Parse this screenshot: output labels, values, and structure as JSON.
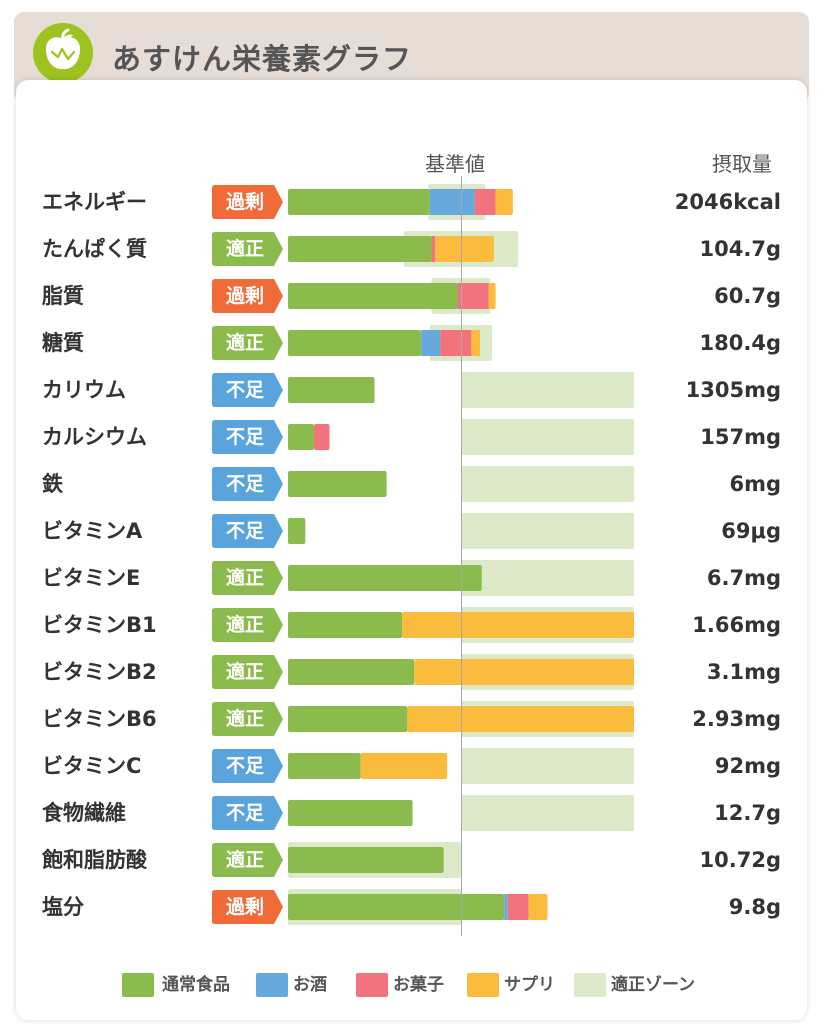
{
  "header": {
    "title": "あすけん栄養素グラフ",
    "logo_icon": "apple-icon"
  },
  "chart_data": {
    "type": "bar",
    "subtype": "stacked-horizontal-with-target-zones",
    "reference_label": "基準値",
    "intake_header": "摂取量",
    "axis": {
      "min": 0,
      "max": 200,
      "reference": 100,
      "unit": "% of standard"
    },
    "colors": {
      "food": "#8bbb4d",
      "alcohol": "#67a9dc",
      "snack": "#f2737e",
      "supplement": "#fbbb3c",
      "zone": "#dceac9",
      "excess": "#f06b37",
      "ok": "#8bbb4d",
      "deficient": "#5aa4de"
    },
    "status_labels": {
      "excess": "過剰",
      "ok": "適正",
      "deficient": "不足"
    },
    "legend": [
      {
        "key": "food",
        "label": "通常食品"
      },
      {
        "key": "alcohol",
        "label": "お酒"
      },
      {
        "key": "snack",
        "label": "お菓子"
      },
      {
        "key": "supplement",
        "label": "サプリ"
      },
      {
        "key": "zone",
        "label": "適正ゾーン"
      }
    ],
    "rows": [
      {
        "name": "エネルギー",
        "status": "excess",
        "value": "2046kcal",
        "zone": [
          81,
          114
        ],
        "segments": [
          [
            "food",
            82
          ],
          [
            "alcohol",
            26
          ],
          [
            "snack",
            12
          ],
          [
            "supplement",
            10
          ]
        ]
      },
      {
        "name": "たんぱく質",
        "status": "ok",
        "value": "104.7g",
        "zone": [
          67,
          133
        ],
        "segments": [
          [
            "food",
            83
          ],
          [
            "snack",
            2
          ],
          [
            "supplement",
            34
          ]
        ]
      },
      {
        "name": "脂質",
        "status": "excess",
        "value": "60.7g",
        "zone": [
          83,
          117
        ],
        "segments": [
          [
            "food",
            98
          ],
          [
            "snack",
            18
          ],
          [
            "supplement",
            4
          ]
        ]
      },
      {
        "name": "糖質",
        "status": "ok",
        "value": "180.4g",
        "zone": [
          82,
          118
        ],
        "segments": [
          [
            "food",
            77
          ],
          [
            "alcohol",
            11
          ],
          [
            "snack",
            18
          ],
          [
            "supplement",
            5
          ]
        ]
      },
      {
        "name": "カリウム",
        "status": "deficient",
        "value": "1305mg",
        "zone": [
          100,
          200
        ],
        "segments": [
          [
            "food",
            50
          ]
        ]
      },
      {
        "name": "カルシウム",
        "status": "deficient",
        "value": "157mg",
        "zone": [
          100,
          200
        ],
        "segments": [
          [
            "food",
            15
          ],
          [
            "snack",
            9
          ]
        ]
      },
      {
        "name": "鉄",
        "status": "deficient",
        "value": "6mg",
        "zone": [
          100,
          200
        ],
        "segments": [
          [
            "food",
            57
          ]
        ]
      },
      {
        "name": "ビタミンA",
        "status": "deficient",
        "value": "69μg",
        "zone": [
          100,
          200
        ],
        "segments": [
          [
            "food",
            10
          ]
        ]
      },
      {
        "name": "ビタミンE",
        "status": "ok",
        "value": "6.7mg",
        "zone": [
          100,
          200
        ],
        "segments": [
          [
            "food",
            112
          ]
        ]
      },
      {
        "name": "ビタミンB1",
        "status": "ok",
        "value": "1.66mg",
        "zone": [
          100,
          200
        ],
        "segments": [
          [
            "food",
            66
          ],
          [
            "supplement",
            134
          ]
        ]
      },
      {
        "name": "ビタミンB2",
        "status": "ok",
        "value": "3.1mg",
        "zone": [
          100,
          200
        ],
        "segments": [
          [
            "food",
            73
          ],
          [
            "supplement",
            127
          ]
        ]
      },
      {
        "name": "ビタミンB6",
        "status": "ok",
        "value": "2.93mg",
        "zone": [
          100,
          200
        ],
        "segments": [
          [
            "food",
            69
          ],
          [
            "supplement",
            131
          ]
        ]
      },
      {
        "name": "ビタミンC",
        "status": "deficient",
        "value": "92mg",
        "zone": [
          100,
          200
        ],
        "segments": [
          [
            "food",
            42
          ],
          [
            "supplement",
            50
          ]
        ]
      },
      {
        "name": "食物繊維",
        "status": "deficient",
        "value": "12.7g",
        "zone": [
          100,
          200
        ],
        "segments": [
          [
            "food",
            72
          ]
        ]
      },
      {
        "name": "飽和脂肪酸",
        "status": "ok",
        "value": "10.72g",
        "zone": [
          0,
          100
        ],
        "segments": [
          [
            "food",
            90
          ]
        ]
      },
      {
        "name": "塩分",
        "status": "excess",
        "value": "9.8g",
        "zone": [
          0,
          100
        ],
        "segments": [
          [
            "food",
            125
          ],
          [
            "alcohol",
            2
          ],
          [
            "snack",
            12
          ],
          [
            "supplement",
            11
          ]
        ]
      }
    ]
  }
}
